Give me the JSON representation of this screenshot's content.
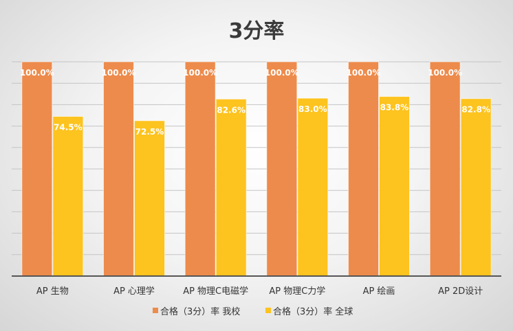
{
  "chart_data": {
    "type": "bar",
    "title": "3分率",
    "categories": [
      "AP 生物",
      "AP 心理学",
      "AP 物理C电磁学",
      "AP 物理C力学",
      "AP 绘画",
      "AP 2D设计"
    ],
    "series": [
      {
        "name": "合格（3分）率 我校",
        "values": [
          100.0,
          100.0,
          100.0,
          100.0,
          100.0,
          100.0
        ],
        "labels": [
          "100.0%",
          "100.0%",
          "100.0%",
          "100.0%",
          "100.0%",
          "100.0%"
        ],
        "color": "#ED8B4C"
      },
      {
        "name": "合格（3分）率 全球",
        "values": [
          74.5,
          72.5,
          82.6,
          83.0,
          83.8,
          82.8
        ],
        "labels": [
          "74.5%",
          "72.5%",
          "82.6%",
          "83.0%",
          "83.8%",
          "82.8%"
        ],
        "color": "#FDC31E"
      }
    ],
    "ylim": [
      0,
      100
    ],
    "grid": true,
    "legend_position": "bottom"
  }
}
